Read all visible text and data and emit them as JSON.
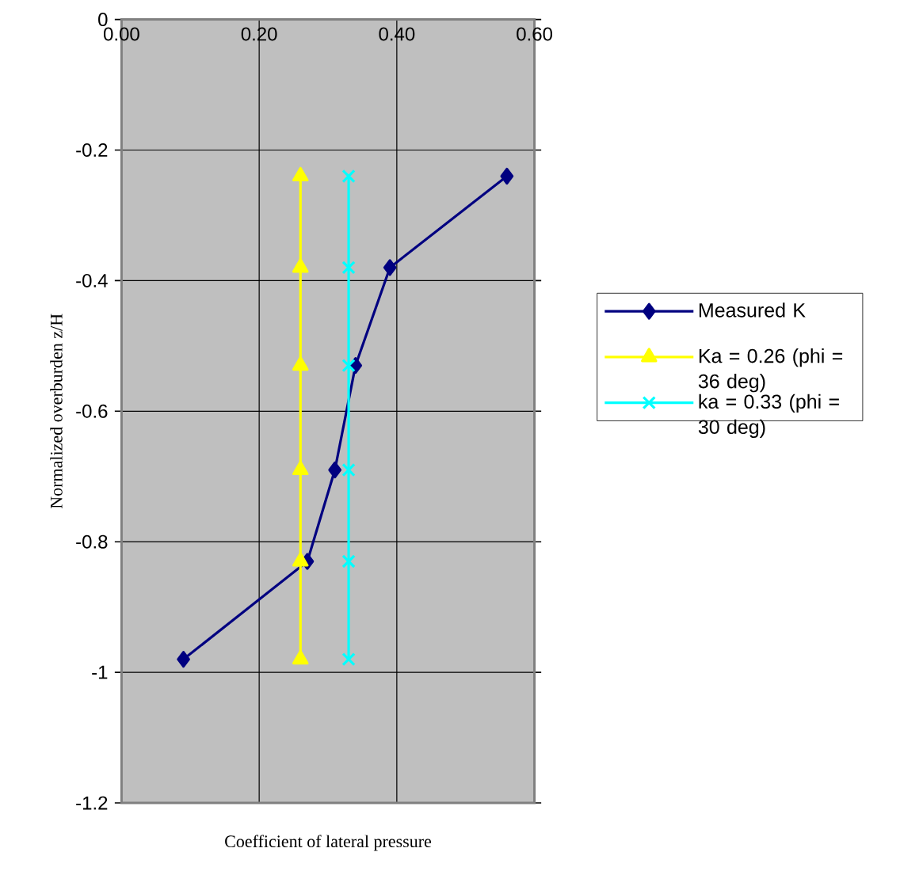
{
  "chart_data": {
    "type": "line",
    "xlabel": "Coefficient of lateral pressure",
    "ylabel": "Normalized overburden z/H",
    "xlim": [
      0,
      0.6
    ],
    "ylim": [
      -1.2,
      0
    ],
    "xticks": [
      {
        "value": 0,
        "label": "0.00"
      },
      {
        "value": 0.2,
        "label": "0.20"
      },
      {
        "value": 0.4,
        "label": "0.40"
      },
      {
        "value": 0.6,
        "label": "0.60"
      }
    ],
    "yticks": [
      {
        "value": -1.2,
        "label": "-1.2"
      },
      {
        "value": -1,
        "label": "-1"
      },
      {
        "value": -0.8,
        "label": "-0.8"
      },
      {
        "value": -0.6,
        "label": "-0.6"
      },
      {
        "value": -0.4,
        "label": "-0.4"
      },
      {
        "value": -0.2,
        "label": "-0.2"
      },
      0
    ],
    "grid": true,
    "legend": "right",
    "line_style": "solid",
    "series": [
      {
        "name": "Measured K",
        "color": "#000080",
        "marker": "diamond",
        "x": [
          0.56,
          0.39,
          0.34,
          0.31,
          0.27,
          0.09
        ],
        "values": [
          -0.24,
          -0.38,
          -0.53,
          -0.69,
          -0.83,
          -0.98
        ]
      },
      {
        "name": "Ka = 0.26 (phi = 36 deg)",
        "color": "#ffff00",
        "marker": "triangle",
        "x": [
          0.26,
          0.26,
          0.26,
          0.26,
          0.26,
          0.26
        ],
        "values": [
          -0.24,
          -0.38,
          -0.53,
          -0.69,
          -0.83,
          -0.98
        ]
      },
      {
        "name": "ka = 0.33 (phi = 30 deg)",
        "color": "#00ffff",
        "marker": "cross",
        "x": [
          0.33,
          0.33,
          0.33,
          0.33,
          0.33,
          0.33
        ],
        "values": [
          -0.24,
          -0.38,
          -0.53,
          -0.69,
          -0.83,
          -0.98
        ]
      }
    ]
  }
}
